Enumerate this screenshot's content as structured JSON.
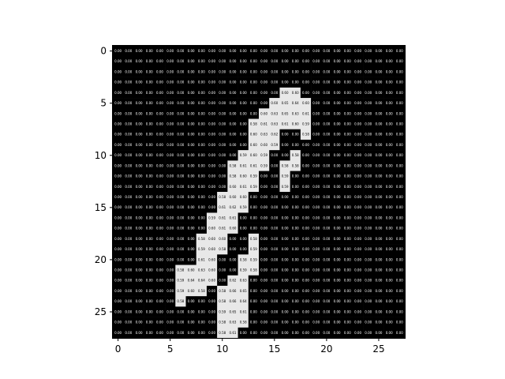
{
  "chart_data": {
    "type": "heatmap",
    "title": "",
    "xlabel": "",
    "ylabel": "",
    "rows": 28,
    "cols": 28,
    "x_ticks": [
      0,
      5,
      10,
      15,
      20,
      25
    ],
    "y_ticks": [
      0,
      5,
      10,
      15,
      20,
      25
    ],
    "colormap": "gray",
    "value_format": "0.00",
    "colors": {
      "low": "#000000",
      "high": "#e8e8e8",
      "low_text": "#ffffff",
      "high_text": "#000000",
      "frame": "#000000"
    },
    "nonzero_cells": [
      [
        4,
        16,
        0.6
      ],
      [
        4,
        17,
        0.6
      ],
      [
        5,
        15,
        0.6
      ],
      [
        5,
        16,
        0.65
      ],
      [
        5,
        17,
        0.64
      ],
      [
        5,
        18,
        0.6
      ],
      [
        6,
        14,
        0.6
      ],
      [
        6,
        15,
        0.63
      ],
      [
        6,
        16,
        0.65
      ],
      [
        6,
        17,
        0.63
      ],
      [
        6,
        18,
        0.61
      ],
      [
        7,
        13,
        0.58
      ],
      [
        7,
        14,
        0.61
      ],
      [
        7,
        15,
        0.63
      ],
      [
        7,
        16,
        0.61
      ],
      [
        7,
        17,
        0.6
      ],
      [
        7,
        18,
        0.59
      ],
      [
        8,
        13,
        0.6
      ],
      [
        8,
        14,
        0.63
      ],
      [
        8,
        15,
        0.62
      ],
      [
        8,
        18,
        0.58
      ],
      [
        9,
        13,
        0.6
      ],
      [
        9,
        14,
        0.6
      ],
      [
        9,
        15,
        0.59
      ],
      [
        10,
        12,
        0.59
      ],
      [
        10,
        13,
        0.6
      ],
      [
        10,
        14,
        0.59
      ],
      [
        10,
        17,
        0.58
      ],
      [
        11,
        11,
        0.58
      ],
      [
        11,
        12,
        0.61
      ],
      [
        11,
        13,
        0.61
      ],
      [
        11,
        14,
        0.59
      ],
      [
        11,
        16,
        0.58
      ],
      [
        11,
        17,
        0.58
      ],
      [
        12,
        11,
        0.58
      ],
      [
        12,
        12,
        0.6
      ],
      [
        12,
        13,
        0.59
      ],
      [
        12,
        16,
        0.59
      ],
      [
        13,
        11,
        0.6
      ],
      [
        13,
        12,
        0.61
      ],
      [
        13,
        13,
        0.59
      ],
      [
        13,
        16,
        0.59
      ],
      [
        14,
        10,
        0.58
      ],
      [
        14,
        11,
        0.6
      ],
      [
        14,
        12,
        0.6
      ],
      [
        15,
        10,
        0.61
      ],
      [
        15,
        11,
        0.62
      ],
      [
        15,
        12,
        0.59
      ],
      [
        16,
        9,
        0.59
      ],
      [
        16,
        10,
        0.61
      ],
      [
        16,
        11,
        0.61
      ],
      [
        17,
        9,
        0.6
      ],
      [
        17,
        10,
        0.61
      ],
      [
        17,
        11,
        0.6
      ],
      [
        18,
        8,
        0.58
      ],
      [
        18,
        9,
        0.6
      ],
      [
        18,
        10,
        0.6
      ],
      [
        18,
        13,
        0.58
      ],
      [
        19,
        8,
        0.59
      ],
      [
        19,
        9,
        0.6
      ],
      [
        19,
        10,
        0.58
      ],
      [
        19,
        13,
        0.59
      ],
      [
        20,
        8,
        0.61
      ],
      [
        20,
        9,
        0.6
      ],
      [
        20,
        12,
        0.58
      ],
      [
        20,
        13,
        0.59
      ],
      [
        21,
        6,
        0.58
      ],
      [
        21,
        7,
        0.6
      ],
      [
        21,
        8,
        0.63
      ],
      [
        21,
        9,
        0.6
      ],
      [
        21,
        12,
        0.59
      ],
      [
        21,
        13,
        0.58
      ],
      [
        22,
        6,
        0.59
      ],
      [
        22,
        7,
        0.64
      ],
      [
        22,
        8,
        0.64
      ],
      [
        22,
        9,
        0.6
      ],
      [
        22,
        11,
        0.62
      ],
      [
        22,
        12,
        0.63
      ],
      [
        23,
        6,
        0.59
      ],
      [
        23,
        7,
        0.6
      ],
      [
        23,
        8,
        0.58
      ],
      [
        23,
        10,
        0.58
      ],
      [
        23,
        11,
        0.66
      ],
      [
        23,
        12,
        0.65
      ],
      [
        24,
        6,
        0.58
      ],
      [
        24,
        10,
        0.58
      ],
      [
        24,
        11,
        0.66
      ],
      [
        24,
        12,
        0.64
      ],
      [
        25,
        10,
        0.59
      ],
      [
        25,
        11,
        0.65
      ],
      [
        25,
        12,
        0.61
      ],
      [
        26,
        10,
        0.58
      ],
      [
        26,
        11,
        0.63
      ],
      [
        26,
        12,
        0.58
      ],
      [
        27,
        10,
        0.58
      ],
      [
        27,
        11,
        0.61
      ]
    ]
  }
}
